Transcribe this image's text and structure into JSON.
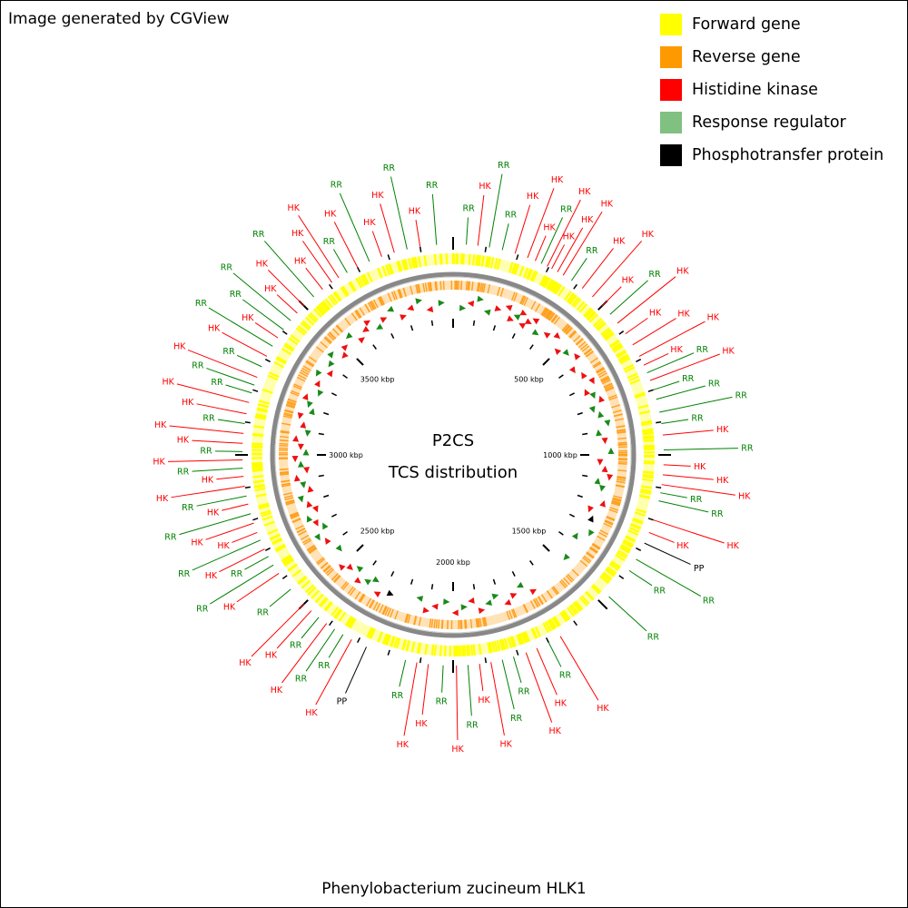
{
  "credit": "Image generated by CGView",
  "footer": "Phenylobacterium zucineum HLK1",
  "center": {
    "line1": "P2CS",
    "line2": "TCS distribution"
  },
  "legend": [
    {
      "label": "Forward gene",
      "color": "#ffff00"
    },
    {
      "label": "Reverse gene",
      "color": "#ff9900"
    },
    {
      "label": "Histidine kinase",
      "color": "#ff0000"
    },
    {
      "label": "Response regulator",
      "color": "#80c080"
    },
    {
      "label": "Phosphotransfer protein",
      "color": "#000000"
    }
  ],
  "colors": {
    "forward": "#ffff00",
    "reverse": "#ffa020",
    "hk": "#ff0000",
    "hk_mark": "#ee1111",
    "rr": "#008000",
    "rr_mark": "#1a8a1a",
    "pp": "#000000",
    "backbone": "#888888"
  },
  "map": {
    "genome_length_kbp": 4000,
    "kbp_ticks": [
      {
        "kbp": 500,
        "label": "500 kbp"
      },
      {
        "kbp": 1000,
        "label": "1000 kbp"
      },
      {
        "kbp": 1500,
        "label": "1500 kbp"
      },
      {
        "kbp": 2000,
        "label": "2000 kbp"
      },
      {
        "kbp": 2500,
        "label": "2500 kbp"
      },
      {
        "kbp": 3000,
        "label": "3000 kbp"
      },
      {
        "kbp": 3500,
        "label": "3500 kbp"
      }
    ],
    "features": [
      {
        "kbp": 40,
        "type": "RR"
      },
      {
        "kbp": 75,
        "type": "HK"
      },
      {
        "kbp": 110,
        "type": "RR"
      },
      {
        "kbp": 150,
        "type": "RR"
      },
      {
        "kbp": 190,
        "type": "HK"
      },
      {
        "kbp": 230,
        "type": "HK"
      },
      {
        "kbp": 255,
        "type": "HK"
      },
      {
        "kbp": 275,
        "type": "RR"
      },
      {
        "kbp": 295,
        "type": "HK"
      },
      {
        "kbp": 310,
        "type": "HK"
      },
      {
        "kbp": 330,
        "type": "HK"
      },
      {
        "kbp": 350,
        "type": "HK"
      },
      {
        "kbp": 380,
        "type": "RR"
      },
      {
        "kbp": 420,
        "type": "HK"
      },
      {
        "kbp": 460,
        "type": "HK"
      },
      {
        "kbp": 500,
        "type": "HK"
      },
      {
        "kbp": 535,
        "type": "RR"
      },
      {
        "kbp": 570,
        "type": "HK"
      },
      {
        "kbp": 610,
        "type": "HK"
      },
      {
        "kbp": 650,
        "type": "HK"
      },
      {
        "kbp": 690,
        "type": "HK"
      },
      {
        "kbp": 720,
        "type": "HK"
      },
      {
        "kbp": 745,
        "type": "RR"
      },
      {
        "kbp": 770,
        "type": "HK"
      },
      {
        "kbp": 800,
        "type": "RR"
      },
      {
        "kbp": 830,
        "type": "RR"
      },
      {
        "kbp": 870,
        "type": "RR"
      },
      {
        "kbp": 905,
        "type": "RR"
      },
      {
        "kbp": 940,
        "type": "HK"
      },
      {
        "kbp": 985,
        "type": "RR"
      },
      {
        "kbp": 1030,
        "type": "HK"
      },
      {
        "kbp": 1060,
        "type": "HK"
      },
      {
        "kbp": 1090,
        "type": "HK"
      },
      {
        "kbp": 1115,
        "type": "RR"
      },
      {
        "kbp": 1140,
        "type": "RR"
      },
      {
        "kbp": 1200,
        "type": "HK"
      },
      {
        "kbp": 1240,
        "type": "HK"
      },
      {
        "kbp": 1275,
        "type": "PP"
      },
      {
        "kbp": 1330,
        "type": "RR"
      },
      {
        "kbp": 1370,
        "type": "RR"
      },
      {
        "kbp": 1470,
        "type": "RR"
      },
      {
        "kbp": 1660,
        "type": "HK"
      },
      {
        "kbp": 1700,
        "type": "RR"
      },
      {
        "kbp": 1740,
        "type": "HK"
      },
      {
        "kbp": 1775,
        "type": "HK"
      },
      {
        "kbp": 1815,
        "type": "RR"
      },
      {
        "kbp": 1850,
        "type": "RR"
      },
      {
        "kbp": 1885,
        "type": "HK"
      },
      {
        "kbp": 1920,
        "type": "HK"
      },
      {
        "kbp": 1955,
        "type": "RR"
      },
      {
        "kbp": 1990,
        "type": "HK"
      },
      {
        "kbp": 2030,
        "type": "RR"
      },
      {
        "kbp": 2075,
        "type": "HK"
      },
      {
        "kbp": 2110,
        "type": "HK"
      },
      {
        "kbp": 2145,
        "type": "RR"
      },
      {
        "kbp": 2270,
        "type": "PP"
      },
      {
        "kbp": 2320,
        "type": "HK"
      },
      {
        "kbp": 2350,
        "type": "RR"
      },
      {
        "kbp": 2380,
        "type": "RR"
      },
      {
        "kbp": 2410,
        "type": "HK"
      },
      {
        "kbp": 2440,
        "type": "RR"
      },
      {
        "kbp": 2470,
        "type": "HK"
      },
      {
        "kbp": 2500,
        "type": "HK"
      },
      {
        "kbp": 2560,
        "type": "RR"
      },
      {
        "kbp": 2620,
        "type": "HK"
      },
      {
        "kbp": 2650,
        "type": "RR"
      },
      {
        "kbp": 2680,
        "type": "RR"
      },
      {
        "kbp": 2705,
        "type": "HK"
      },
      {
        "kbp": 2735,
        "type": "RR"
      },
      {
        "kbp": 2760,
        "type": "HK"
      },
      {
        "kbp": 2790,
        "type": "HK"
      },
      {
        "kbp": 2820,
        "type": "RR"
      },
      {
        "kbp": 2850,
        "type": "HK"
      },
      {
        "kbp": 2875,
        "type": "RR"
      },
      {
        "kbp": 2905,
        "type": "HK"
      },
      {
        "kbp": 2935,
        "type": "HK"
      },
      {
        "kbp": 2960,
        "type": "RR"
      },
      {
        "kbp": 2985,
        "type": "HK"
      },
      {
        "kbp": 3010,
        "type": "RR"
      },
      {
        "kbp": 3035,
        "type": "HK"
      },
      {
        "kbp": 3065,
        "type": "HK"
      },
      {
        "kbp": 3095,
        "type": "RR"
      },
      {
        "kbp": 3125,
        "type": "HK"
      },
      {
        "kbp": 3160,
        "type": "HK"
      },
      {
        "kbp": 3190,
        "type": "RR"
      },
      {
        "kbp": 3215,
        "type": "RR"
      },
      {
        "kbp": 3240,
        "type": "HK"
      },
      {
        "kbp": 3275,
        "type": "RR"
      },
      {
        "kbp": 3310,
        "type": "HK"
      },
      {
        "kbp": 3345,
        "type": "RR"
      },
      {
        "kbp": 3375,
        "type": "HK"
      },
      {
        "kbp": 3405,
        "type": "RR"
      },
      {
        "kbp": 3440,
        "type": "RR"
      },
      {
        "kbp": 3470,
        "type": "HK"
      },
      {
        "kbp": 3500,
        "type": "HK"
      },
      {
        "kbp": 3540,
        "type": "RR"
      },
      {
        "kbp": 3575,
        "type": "HK"
      },
      {
        "kbp": 3610,
        "type": "HK"
      },
      {
        "kbp": 3635,
        "type": "HK"
      },
      {
        "kbp": 3665,
        "type": "RR"
      },
      {
        "kbp": 3700,
        "type": "HK"
      },
      {
        "kbp": 3740,
        "type": "RR"
      },
      {
        "kbp": 3780,
        "type": "HK"
      },
      {
        "kbp": 3820,
        "type": "HK"
      },
      {
        "kbp": 3860,
        "type": "RR"
      },
      {
        "kbp": 3900,
        "type": "HK"
      },
      {
        "kbp": 3950,
        "type": "RR"
      }
    ]
  }
}
